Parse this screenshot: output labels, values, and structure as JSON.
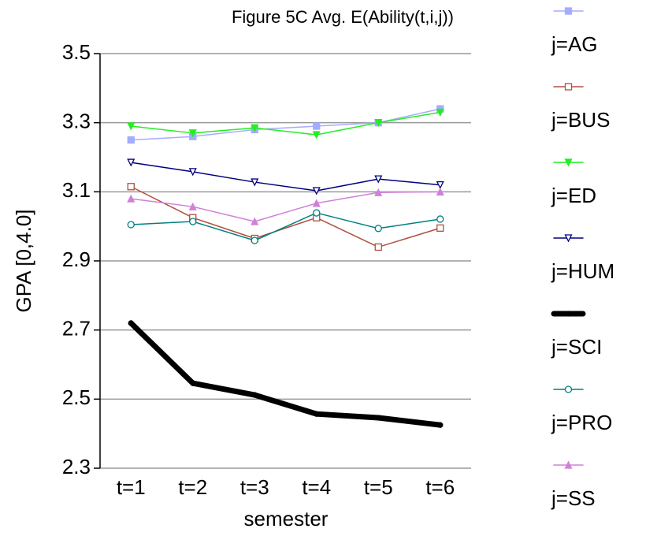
{
  "chart_data": {
    "type": "line",
    "title": "Figure 5C  Avg. E(Ability(t,i,j))",
    "x_label": "semester",
    "y_label": "GPA  [0,4.0]",
    "categories": [
      "t=1",
      "t=2",
      "t=3",
      "t=4",
      "t=5",
      "t=6"
    ],
    "ylim": [
      2.3,
      3.5
    ],
    "yticks": [
      2.3,
      2.5,
      2.7,
      2.9,
      3.1,
      3.3,
      3.5
    ],
    "grid": true,
    "legend": "right",
    "series": [
      {
        "name": "j=AG",
        "color": "#a4acff",
        "marker": "square",
        "values": [
          3.25,
          3.26,
          3.28,
          3.29,
          3.3,
          3.34
        ]
      },
      {
        "name": "j=BUS",
        "color": "#b0503c",
        "marker": "square-open",
        "values": [
          3.115,
          3.025,
          2.965,
          3.025,
          2.94,
          2.995
        ]
      },
      {
        "name": "j=ED",
        "color": "#22ee22",
        "marker": "triangle-down",
        "values": [
          3.29,
          3.27,
          3.285,
          3.265,
          3.3,
          3.33
        ]
      },
      {
        "name": "j=HUM",
        "color": "#000080",
        "marker": "triangle-down-open",
        "values": [
          3.185,
          3.158,
          3.128,
          3.103,
          3.137,
          3.12
        ]
      },
      {
        "name": "j=SCI",
        "color": "#000000",
        "marker": "bullet",
        "values": [
          2.72,
          2.546,
          2.512,
          2.457,
          2.446,
          2.425
        ]
      },
      {
        "name": "j=PRO",
        "color": "#008080",
        "marker": "circle-open",
        "values": [
          3.005,
          3.014,
          2.959,
          3.039,
          2.994,
          3.021
        ]
      },
      {
        "name": "j=SS",
        "color": "#d080d8",
        "marker": "triangle",
        "values": [
          3.08,
          3.057,
          3.014,
          3.067,
          3.098,
          3.1
        ]
      }
    ]
  }
}
